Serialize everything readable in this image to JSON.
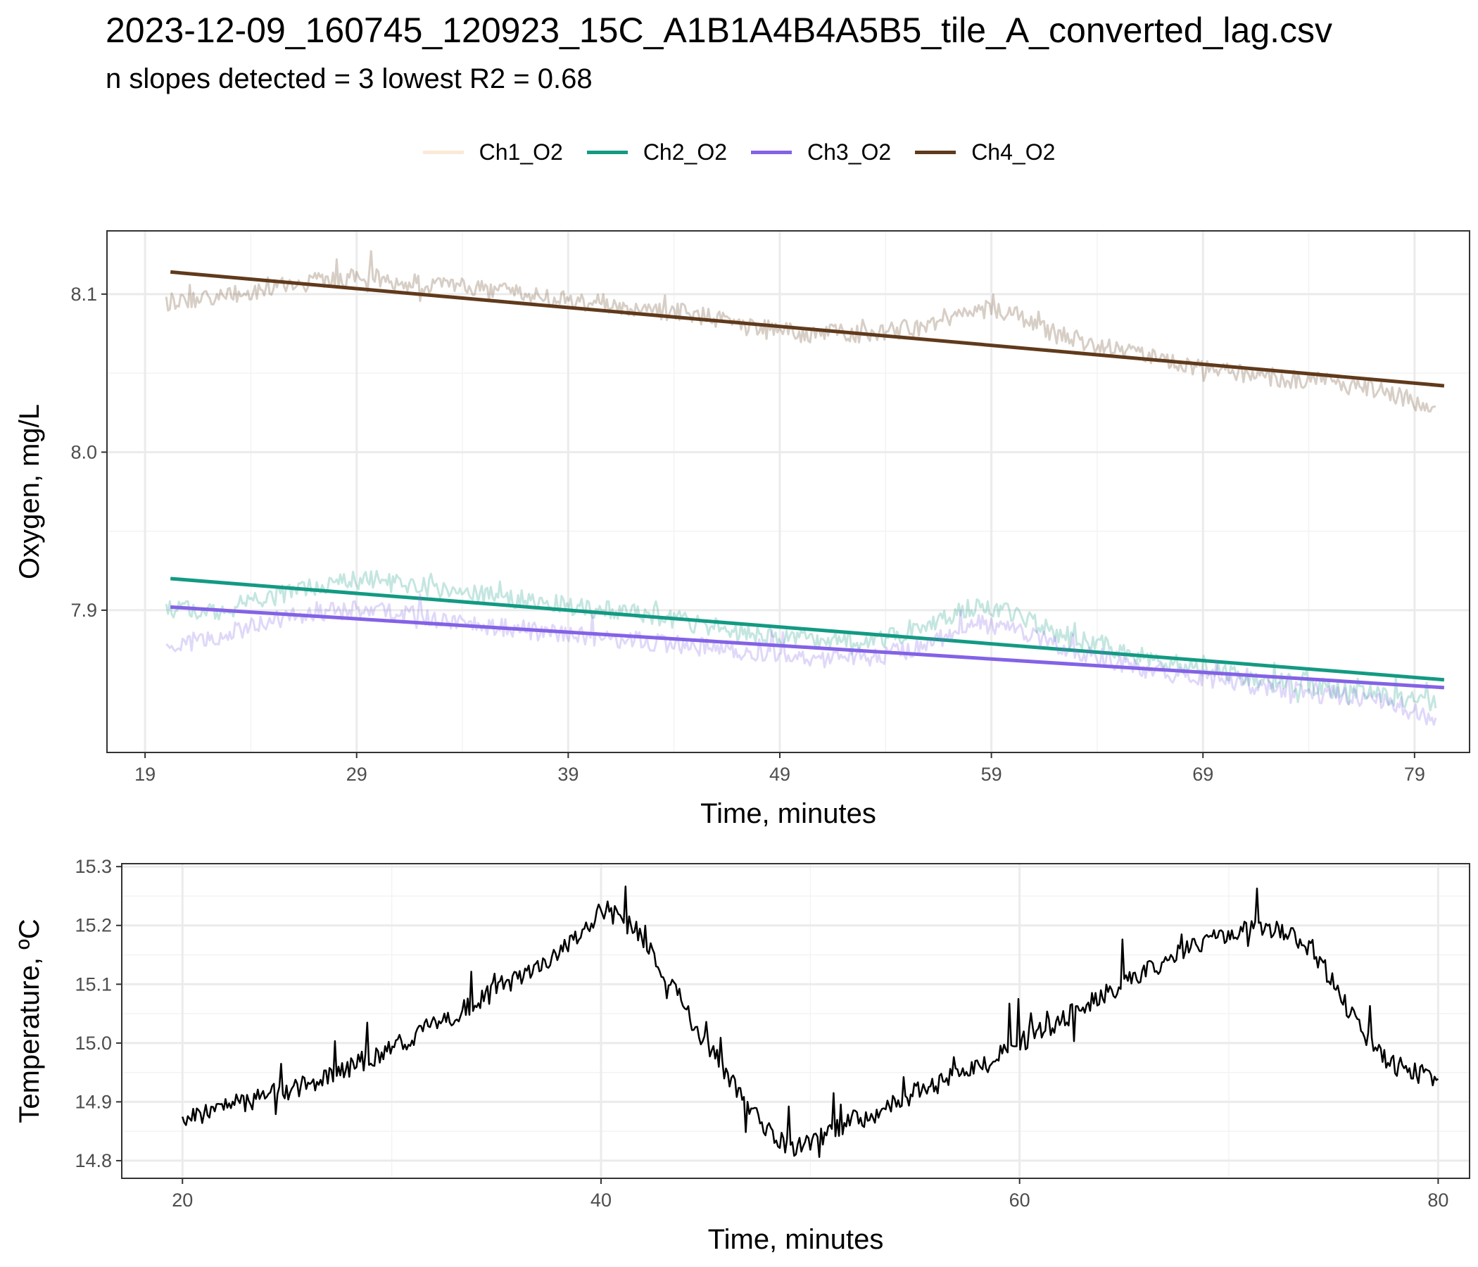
{
  "title": "2023-12-09_160745_120923_15C_A1B1A4B4A5B5_tile_A_converted_lag.csv",
  "subtitle": "n slopes detected = 3  lowest R2 = 0.68",
  "colors": {
    "Ch1_O2": "#fbe9d7",
    "Ch2_O2": "#139a83",
    "Ch3_O2": "#8362e6",
    "Ch4_O2": "#603a1c",
    "temperature": "#000000",
    "grid": "#ebebeb"
  },
  "chart_data": [
    {
      "type": "line",
      "xlabel": "Time, minutes",
      "ylabel": "Oxygen, mg/L",
      "xlim": [
        17.2,
        81.6
      ],
      "ylim": [
        7.81,
        8.14
      ],
      "xticks": [
        19,
        29,
        39,
        49,
        59,
        69,
        79
      ],
      "yticks": [
        7.9,
        8.0,
        8.1
      ],
      "ytick_labels": [
        "7.9",
        "8.0",
        "8.1"
      ],
      "grid": true,
      "legend_position": "top",
      "series": [
        {
          "name": "Ch1_O2",
          "kind": "raw",
          "x": [],
          "y": []
        },
        {
          "name": "Ch2_O2",
          "kind": "raw",
          "x": [
            20,
            22,
            24,
            26,
            28,
            30,
            32,
            34,
            36,
            38,
            40,
            42,
            44,
            46,
            48,
            50,
            52,
            54,
            56,
            58,
            60,
            62,
            64,
            66,
            68,
            70,
            72,
            74,
            76,
            78,
            80
          ],
          "y": [
            7.902,
            7.898,
            7.905,
            7.912,
            7.918,
            7.92,
            7.915,
            7.912,
            7.908,
            7.905,
            7.901,
            7.898,
            7.894,
            7.889,
            7.884,
            7.881,
            7.879,
            7.882,
            7.889,
            7.902,
            7.898,
            7.886,
            7.879,
            7.871,
            7.866,
            7.861,
            7.856,
            7.852,
            7.849,
            7.845,
            7.84
          ]
        },
        {
          "name": "Ch2_O2",
          "kind": "fit",
          "x": [
            20.2,
            80.4
          ],
          "y": [
            7.92,
            7.856
          ]
        },
        {
          "name": "Ch3_O2",
          "kind": "raw",
          "x": [
            20,
            22,
            24,
            26,
            28,
            30,
            32,
            34,
            36,
            38,
            40,
            42,
            44,
            46,
            48,
            50,
            52,
            54,
            56,
            58,
            60,
            62,
            64,
            66,
            68,
            70,
            72,
            74,
            76,
            78,
            80
          ],
          "y": [
            7.876,
            7.882,
            7.89,
            7.896,
            7.9,
            7.9,
            7.896,
            7.892,
            7.889,
            7.886,
            7.883,
            7.881,
            7.879,
            7.876,
            7.873,
            7.87,
            7.869,
            7.872,
            7.878,
            7.892,
            7.888,
            7.878,
            7.871,
            7.864,
            7.859,
            7.855,
            7.852,
            7.848,
            7.845,
            7.841,
            7.83
          ]
        },
        {
          "name": "Ch3_O2",
          "kind": "fit",
          "x": [
            20.2,
            80.4
          ],
          "y": [
            7.902,
            7.851
          ]
        },
        {
          "name": "Ch4_O2",
          "kind": "raw",
          "x": [
            20,
            22,
            24,
            26,
            28,
            30,
            32,
            34,
            36,
            38,
            40,
            42,
            44,
            46,
            48,
            50,
            52,
            54,
            56,
            58,
            60,
            62,
            64,
            66,
            68,
            70,
            72,
            74,
            76,
            78,
            80
          ],
          "y": [
            8.095,
            8.097,
            8.1,
            8.106,
            8.11,
            8.11,
            8.107,
            8.104,
            8.101,
            8.098,
            8.095,
            8.092,
            8.089,
            8.084,
            8.078,
            8.075,
            8.075,
            8.076,
            8.08,
            8.092,
            8.088,
            8.075,
            8.068,
            8.061,
            8.055,
            8.051,
            8.048,
            8.045,
            8.042,
            8.037,
            8.027
          ]
        },
        {
          "name": "Ch4_O2",
          "kind": "fit",
          "x": [
            20.2,
            80.4
          ],
          "y": [
            8.114,
            8.042
          ]
        }
      ]
    },
    {
      "type": "line",
      "xlabel": "Time, minutes",
      "ylabel": "Temperature, ºC",
      "xlim": [
        17.1,
        81.5
      ],
      "ylim": [
        14.77,
        15.305
      ],
      "xticks": [
        20,
        40,
        60,
        80
      ],
      "yticks": [
        14.8,
        14.9,
        15.0,
        15.1,
        15.2,
        15.3
      ],
      "ytick_labels": [
        "14.8",
        "14.9",
        "15.0",
        "15.1",
        "15.2",
        "15.3"
      ],
      "grid": true,
      "series": [
        {
          "name": "",
          "x": [
            20,
            22,
            24,
            26,
            28,
            30,
            32,
            34,
            36,
            38,
            39.5,
            40,
            41,
            42,
            43,
            44,
            45,
            46,
            47,
            48,
            49,
            50,
            51,
            52,
            53,
            54,
            56,
            58,
            60,
            62,
            64,
            66,
            68,
            70,
            71,
            72,
            73,
            74,
            75,
            76,
            77,
            78,
            79,
            80
          ],
          "y": [
            14.87,
            14.89,
            14.91,
            14.93,
            14.96,
            14.99,
            15.03,
            15.07,
            15.11,
            15.15,
            15.2,
            15.23,
            15.21,
            15.18,
            15.12,
            15.06,
            15.0,
            14.95,
            14.9,
            14.85,
            14.82,
            14.83,
            14.85,
            14.87,
            14.88,
            14.9,
            14.93,
            14.96,
            15.0,
            15.04,
            15.08,
            15.12,
            15.16,
            15.19,
            15.2,
            15.2,
            15.18,
            15.16,
            15.1,
            15.04,
            14.99,
            14.96,
            14.95,
            14.93
          ]
        }
      ]
    }
  ]
}
